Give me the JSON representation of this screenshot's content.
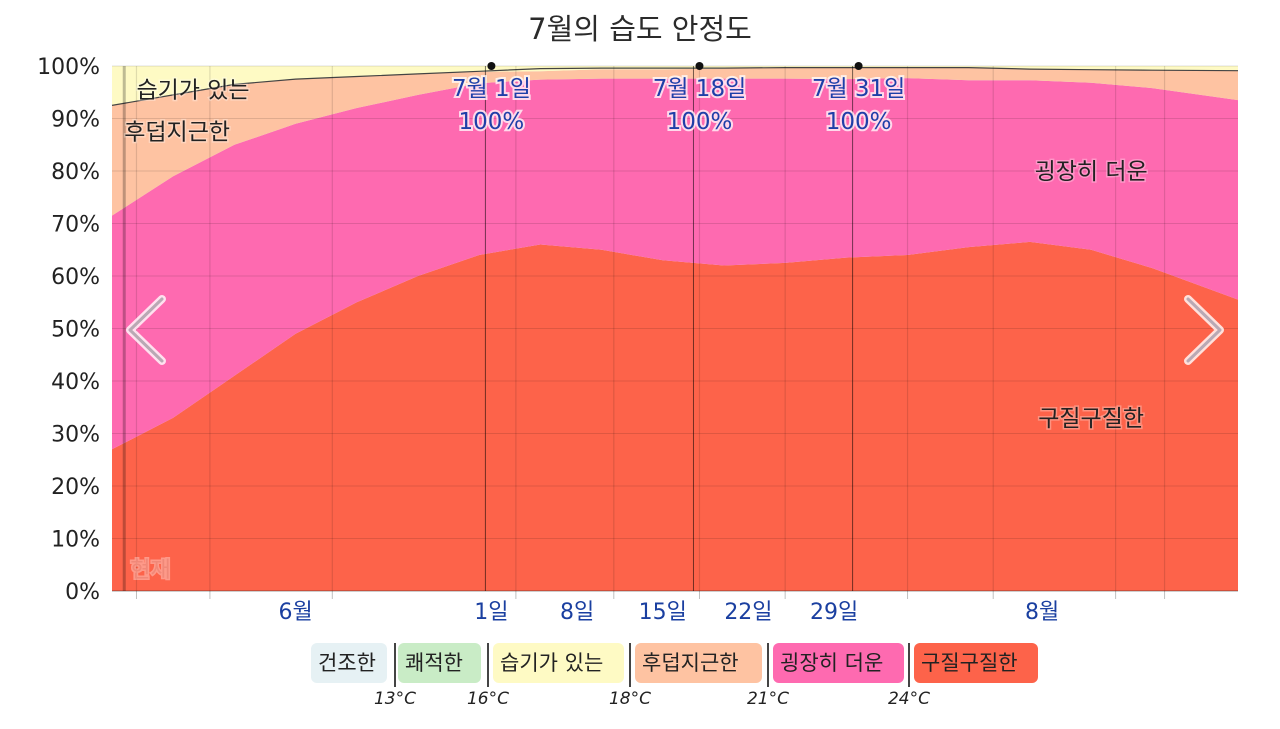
{
  "chart_data": {
    "type": "area",
    "title": "7월의 습도 안정도",
    "y_tick_labels": [
      "0%",
      "10%",
      "20%",
      "30%",
      "40%",
      "50%",
      "60%",
      "70%",
      "80%",
      "90%",
      "100%"
    ],
    "ylim": [
      0,
      100
    ],
    "x_tick_labels": [
      "6월",
      "1일",
      "8일",
      "15일",
      "22일",
      "29일",
      "8월"
    ],
    "x_tick_days": [
      -15,
      1,
      8,
      15,
      22,
      29,
      46
    ],
    "xlim": [
      -30,
      62
    ],
    "grid": true,
    "x_days": [
      -30,
      -25,
      -20,
      -15,
      -10,
      -5,
      0,
      5,
      10,
      15,
      20,
      25,
      30,
      35,
      40,
      45,
      50,
      55,
      62
    ],
    "series": [
      {
        "name": "구질구질한",
        "color": "#fd634a",
        "values": [
          27,
          33,
          41,
          49,
          55,
          60,
          64,
          66,
          65,
          63,
          62,
          62.5,
          63.5,
          64,
          65.5,
          66.5,
          65,
          61.5,
          55.5
        ]
      },
      {
        "name": "굉장히 더운",
        "color": "#fe6ab0",
        "values": [
          44.5,
          46,
          44,
          40,
          37,
          34.5,
          32.7,
          31.4,
          32.6,
          34.6,
          35.6,
          35.1,
          34,
          33.7,
          31.8,
          30.8,
          31.8,
          34.3,
          38
        ]
      },
      {
        "name": "후덥지근한",
        "color": "#fec3a2",
        "values": [
          21,
          15.5,
          11.5,
          8.5,
          6,
          4,
          2.2,
          1.6,
          1.8,
          1.8,
          1.9,
          2.1,
          2.2,
          2,
          2.4,
          2.1,
          2.5,
          3.4,
          5.6
        ]
      },
      {
        "name": "습기가 있는",
        "color": "#fefac4",
        "values": [
          7.5,
          5.5,
          3.5,
          2.5,
          2,
          1.5,
          1.1,
          1,
          0.6,
          0.6,
          0.5,
          0.3,
          0.3,
          0.3,
          0.3,
          0.6,
          0.7,
          0.8,
          0.9
        ]
      }
    ],
    "top_line_values": [
      92.5,
      94.5,
      96.5,
      97.5,
      98,
      98.5,
      99,
      99.5,
      99.6,
      99.6,
      99.6,
      99.7,
      99.7,
      99.7,
      99.7,
      99.4,
      99.3,
      99.2,
      99.1
    ],
    "series_labels": [
      {
        "text": "습기가 있는",
        "day": -28,
        "y": 95.5
      },
      {
        "text": "후덥지근한",
        "day": -29,
        "y": 87.5
      },
      {
        "text": "굉장히 더운",
        "day": 50,
        "y": 80
      },
      {
        "text": "구질구질한",
        "day": 50,
        "y": 33
      }
    ],
    "annotations": [
      {
        "day": 1,
        "month_label": "7월 1일",
        "value_label": "100%"
      },
      {
        "day": 18,
        "month_label": "7월 18일",
        "value_label": "100%"
      },
      {
        "day": 31,
        "month_label": "7월 31일",
        "value_label": "100%"
      }
    ],
    "now_marker": {
      "label": "현재",
      "day": -29
    }
  },
  "legend": {
    "items": [
      {
        "label": "건조한",
        "color": "#e6f1f4"
      },
      {
        "label": "쾌적한",
        "color": "#c9ecc6"
      },
      {
        "label": "습기가 있는",
        "color": "#fefac4"
      },
      {
        "label": "후덥지근한",
        "color": "#fec3a2"
      },
      {
        "label": "굉장히 더운",
        "color": "#fe6ab0"
      },
      {
        "label": "구질구질한",
        "color": "#fd634a"
      }
    ],
    "thresholds": [
      "13°C",
      "16°C",
      "18°C",
      "21°C",
      "24°C"
    ]
  },
  "nav": {
    "prev_icon": "chevron-left-icon",
    "next_icon": "chevron-right-icon"
  }
}
